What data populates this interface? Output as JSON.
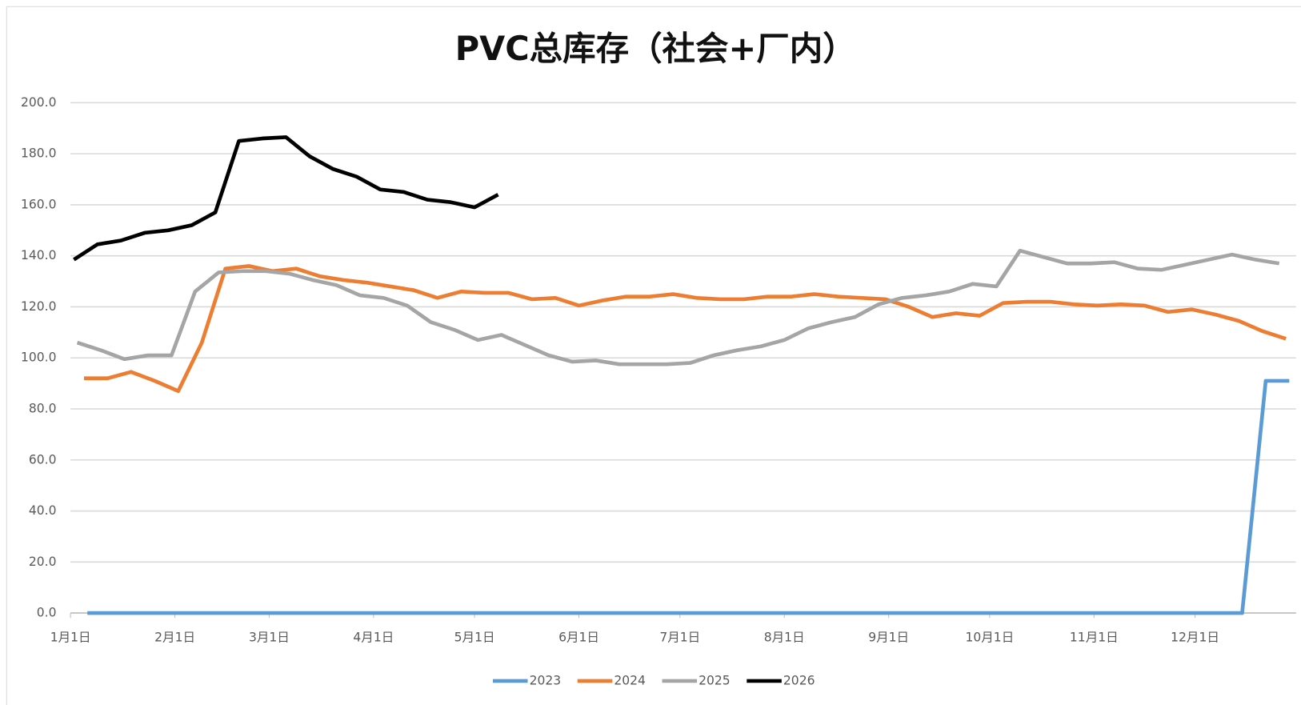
{
  "chart_data": {
    "type": "line",
    "title": "PVC总库存（社会+厂内）",
    "xlim": [
      0,
      364
    ],
    "xticks": [
      {
        "value": 0,
        "label": "1月1日"
      },
      {
        "value": 31,
        "label": "2月1日"
      },
      {
        "value": 59,
        "label": "3月1日"
      },
      {
        "value": 90,
        "label": "4月1日"
      },
      {
        "value": 120,
        "label": "5月1日"
      },
      {
        "value": 151,
        "label": "6月1日"
      },
      {
        "value": 181,
        "label": "7月1日"
      },
      {
        "value": 212,
        "label": "8月1日"
      },
      {
        "value": 243,
        "label": "9月1日"
      },
      {
        "value": 273,
        "label": "10月1日"
      },
      {
        "value": 304,
        "label": "11月1日"
      },
      {
        "value": 334,
        "label": "12月1日"
      }
    ],
    "ylim": [
      0,
      200
    ],
    "yticks": [
      {
        "value": 0,
        "label": "0.0"
      },
      {
        "value": 20,
        "label": "20.0"
      },
      {
        "value": 40,
        "label": "40.0"
      },
      {
        "value": 60,
        "label": "60.0"
      },
      {
        "value": 80,
        "label": "80.0"
      },
      {
        "value": 100,
        "label": "100.0"
      },
      {
        "value": 120,
        "label": "120.0"
      },
      {
        "value": 140,
        "label": "140.0"
      },
      {
        "value": 160,
        "label": "160.0"
      },
      {
        "value": 180,
        "label": "180.0"
      },
      {
        "value": 200,
        "label": "200.0"
      }
    ],
    "grid": true,
    "legend": "bottom",
    "series": [
      {
        "name": "2023",
        "color": "#5b9bd5",
        "x": [
          5,
          12,
          19,
          26,
          33,
          40,
          47,
          54,
          61,
          68,
          75,
          82,
          89,
          96,
          103,
          110,
          117,
          124,
          131,
          138,
          145,
          152,
          159,
          166,
          173,
          180,
          187,
          194,
          201,
          208,
          215,
          222,
          229,
          236,
          243,
          250,
          257,
          264,
          271,
          278,
          285,
          292,
          299,
          306,
          313,
          320,
          327,
          334,
          341,
          348,
          355,
          362
        ],
        "values": [
          0,
          0,
          0,
          0,
          0,
          0,
          0,
          0,
          0,
          0,
          0,
          0,
          0,
          0,
          0,
          0,
          0,
          0,
          0,
          0,
          0,
          0,
          0,
          0,
          0,
          0,
          0,
          0,
          0,
          0,
          0,
          0,
          0,
          0,
          0,
          0,
          0,
          0,
          0,
          0,
          0,
          0,
          0,
          0,
          0,
          0,
          0,
          0,
          0,
          0,
          91,
          91
        ]
      },
      {
        "name": "2024",
        "color": "#ed7d31",
        "x": [
          4,
          11,
          18,
          25,
          32,
          39,
          46,
          53,
          60,
          67,
          74,
          81,
          88,
          95,
          102,
          109,
          116,
          123,
          130,
          137,
          144,
          151,
          158,
          165,
          172,
          179,
          186,
          193,
          200,
          207,
          214,
          221,
          228,
          235,
          242,
          249,
          256,
          263,
          270,
          277,
          284,
          291,
          298,
          305,
          312,
          319,
          326,
          333,
          340,
          347,
          354,
          361
        ],
        "values": [
          92,
          92,
          94.5,
          91,
          87,
          106,
          135,
          136,
          134,
          135,
          132,
          130.5,
          129.5,
          128,
          126.5,
          123.5,
          126,
          125.5,
          125.5,
          123,
          123.5,
          120.5,
          122.5,
          124,
          124,
          125,
          123.5,
          123,
          123,
          124,
          124,
          125,
          124,
          123.5,
          123,
          120,
          116,
          117.5,
          116.5,
          121.5,
          122,
          122,
          121,
          120.5,
          121,
          120.5,
          118,
          119,
          117,
          114.5,
          110.5,
          107.5
        ]
      },
      {
        "name": "2025",
        "color": "#a5a5a5",
        "x": [
          2,
          9,
          16,
          23,
          30,
          37,
          44,
          51,
          58,
          65,
          72,
          79,
          86,
          93,
          100,
          107,
          114,
          121,
          128,
          135,
          142,
          149,
          156,
          163,
          170,
          177,
          184,
          191,
          198,
          205,
          212,
          219,
          226,
          233,
          240,
          247,
          254,
          261,
          268,
          275,
          282,
          289,
          296,
          303,
          310,
          317,
          324,
          331,
          338,
          345,
          352,
          359
        ],
        "values": [
          106,
          103,
          99.5,
          101,
          101,
          126,
          133.5,
          134,
          134,
          133,
          130.5,
          128.5,
          124.5,
          123.5,
          120.5,
          114,
          111,
          107,
          109,
          105,
          101,
          98.5,
          99,
          97.5,
          97.5,
          97.5,
          98,
          101,
          103,
          104.5,
          107,
          111.5,
          114,
          116,
          121,
          123.5,
          124.5,
          126,
          129,
          128,
          142,
          139.5,
          137,
          137,
          137.5,
          135,
          134.5,
          136.5,
          138.5,
          140.5,
          138.5,
          137
        ]
      },
      {
        "name": "2026",
        "color": "#000000",
        "x": [
          1,
          8,
          15,
          22,
          29,
          36,
          43,
          50,
          57,
          64,
          71,
          78,
          85,
          92,
          99,
          106,
          113,
          120,
          127
        ],
        "values": [
          138.5,
          144.5,
          146,
          149,
          150,
          152,
          157,
          185,
          186,
          186.5,
          179,
          174,
          171,
          166,
          165,
          162,
          161,
          159,
          164
        ]
      }
    ]
  }
}
